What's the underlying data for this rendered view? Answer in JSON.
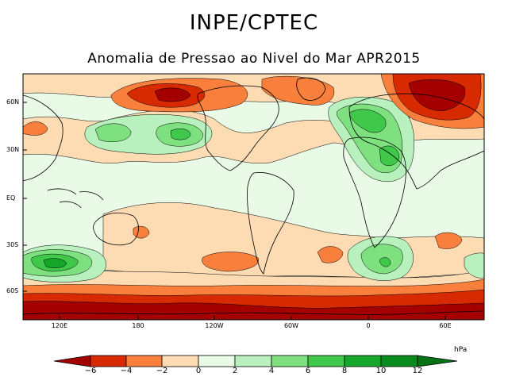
{
  "header": {
    "title": "INPE/CPTEC",
    "subtitle": "Anomalia de Pressao ao Nivel do Mar APR2015"
  },
  "map": {
    "lat_labels": [
      "60N",
      "30N",
      "EQ",
      "30S",
      "60S"
    ],
    "lon_labels": [
      "120E",
      "180",
      "120W",
      "60W",
      "0",
      "60E"
    ],
    "colors": {
      "neg6": "#a50000",
      "neg4": "#d72a00",
      "neg2": "#f97f3c",
      "neg0": "#fddcb4",
      "pos0": "#e9fbe7",
      "pos2": "#b8f1bd",
      "pos4": "#7ee07f",
      "pos6": "#3fc84a",
      "pos8": "#14a729",
      "pos10": "#088a1c"
    }
  },
  "colorbar": {
    "unit": "hPa",
    "ticks": [
      "−6",
      "−4",
      "−2",
      "0",
      "2",
      "4",
      "6",
      "8",
      "10",
      "12"
    ],
    "colors": [
      "#a50000",
      "#d72a00",
      "#f97f3c",
      "#fddcb4",
      "#e9fbe7",
      "#b8f1bd",
      "#7ee07f",
      "#3fc84a",
      "#14a729",
      "#088a1c",
      "#067216"
    ]
  }
}
